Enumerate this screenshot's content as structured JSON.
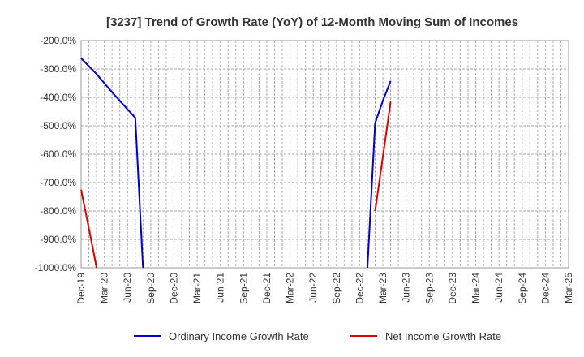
{
  "chart_data": {
    "type": "line",
    "title": "[3237]  Trend of Growth Rate (YoY) of 12-Month Moving Sum of Incomes",
    "xlabel": "",
    "ylabel": "",
    "x_tick_labels": [
      "Dec-19",
      "Mar-20",
      "Jun-20",
      "Sep-20",
      "Dec-20",
      "Mar-21",
      "Jun-21",
      "Sep-21",
      "Dec-21",
      "Mar-22",
      "Jun-22",
      "Sep-22",
      "Dec-22",
      "Mar-23",
      "Jun-23",
      "Sep-23",
      "Dec-23",
      "Mar-24",
      "Jun-24",
      "Sep-24",
      "Dec-24",
      "Mar-25"
    ],
    "y_tick_labels": [
      "-200.0%",
      "-300.0%",
      "-400.0%",
      "-500.0%",
      "-600.0%",
      "-700.0%",
      "-800.0%",
      "-900.0%",
      "-1000.0%"
    ],
    "ylim": [
      -1000,
      -200
    ],
    "grid": true,
    "legend_position": "bottom",
    "series": [
      {
        "name": "Ordinary Income Growth Rate",
        "color": "#0000cc",
        "points": [
          [
            "Dec-19",
            -262
          ],
          [
            "Jan-20",
            -290
          ],
          [
            "Feb-20",
            -318
          ],
          [
            "Mar-20",
            -350
          ],
          [
            "Apr-20",
            -382
          ],
          [
            "May-20",
            -412
          ],
          [
            "Jun-20",
            -442
          ],
          [
            "Jul-20",
            -472
          ],
          [
            "Aug-20",
            -1000
          ],
          [
            "Jan-23",
            -1000
          ],
          [
            "Feb-23",
            -490
          ],
          [
            "Mar-23",
            -412
          ],
          [
            "Apr-23",
            -342
          ]
        ]
      },
      {
        "name": "Net Income Growth Rate",
        "color": "#dd0000",
        "points": [
          [
            "Dec-19",
            -725
          ],
          [
            "Jan-20",
            -860
          ],
          [
            "Feb-20",
            -1000
          ],
          [
            "Feb-23",
            -800
          ],
          [
            "Mar-23",
            -610
          ],
          [
            "Apr-23",
            -415
          ]
        ]
      }
    ]
  }
}
